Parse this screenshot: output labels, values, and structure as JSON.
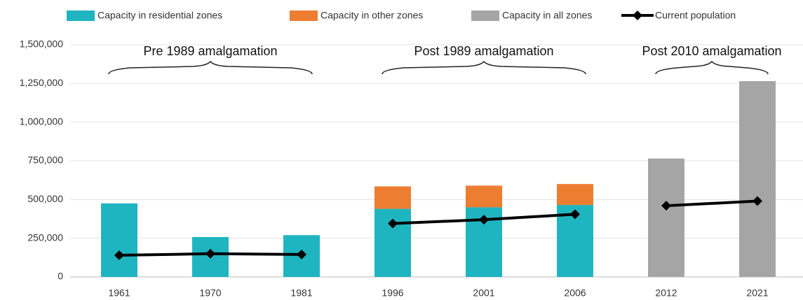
{
  "chart_data": {
    "type": "bar",
    "categories": [
      "1961",
      "1970",
      "1981",
      "1996",
      "2001",
      "2006",
      "2012",
      "2021"
    ],
    "series": [
      {
        "name": "Capacity in residential zones",
        "color": "#1fb5c0",
        "type": "bar",
        "values": [
          475000,
          258000,
          270000,
          440000,
          450000,
          465000,
          null,
          null
        ]
      },
      {
        "name": "Capacity in other zones",
        "color": "#ed7d31",
        "type": "bar",
        "values": [
          null,
          null,
          null,
          145000,
          140000,
          135000,
          null,
          null
        ]
      },
      {
        "name": "Capacity in all zones",
        "color": "#a5a5a5",
        "type": "bar",
        "values": [
          null,
          null,
          null,
          null,
          null,
          null,
          765000,
          1265000
        ]
      },
      {
        "name": "Current population",
        "color": "#000000",
        "type": "line",
        "values": [
          140000,
          150000,
          145000,
          345000,
          370000,
          405000,
          460000,
          490000
        ]
      }
    ],
    "annotations": [
      "Pre 1989 amalgamation",
      "Post 1989 amalgamation",
      "Post 2010 amalgamation"
    ],
    "ylim": [
      0,
      1500000
    ],
    "yticks": [
      0,
      {
        "value": 250000,
        "label": "250,000"
      },
      {
        "value": 500000,
        "label": "500,000"
      },
      {
        "value": 750000,
        "label": "750,000"
      },
      {
        "value": 1000000,
        "label": "1,000,000"
      },
      {
        "value": 1250000,
        "label": "1,250,000"
      },
      {
        "value": 1500000,
        "label": "1,500,000"
      }
    ],
    "grid": true,
    "legend": "top"
  }
}
